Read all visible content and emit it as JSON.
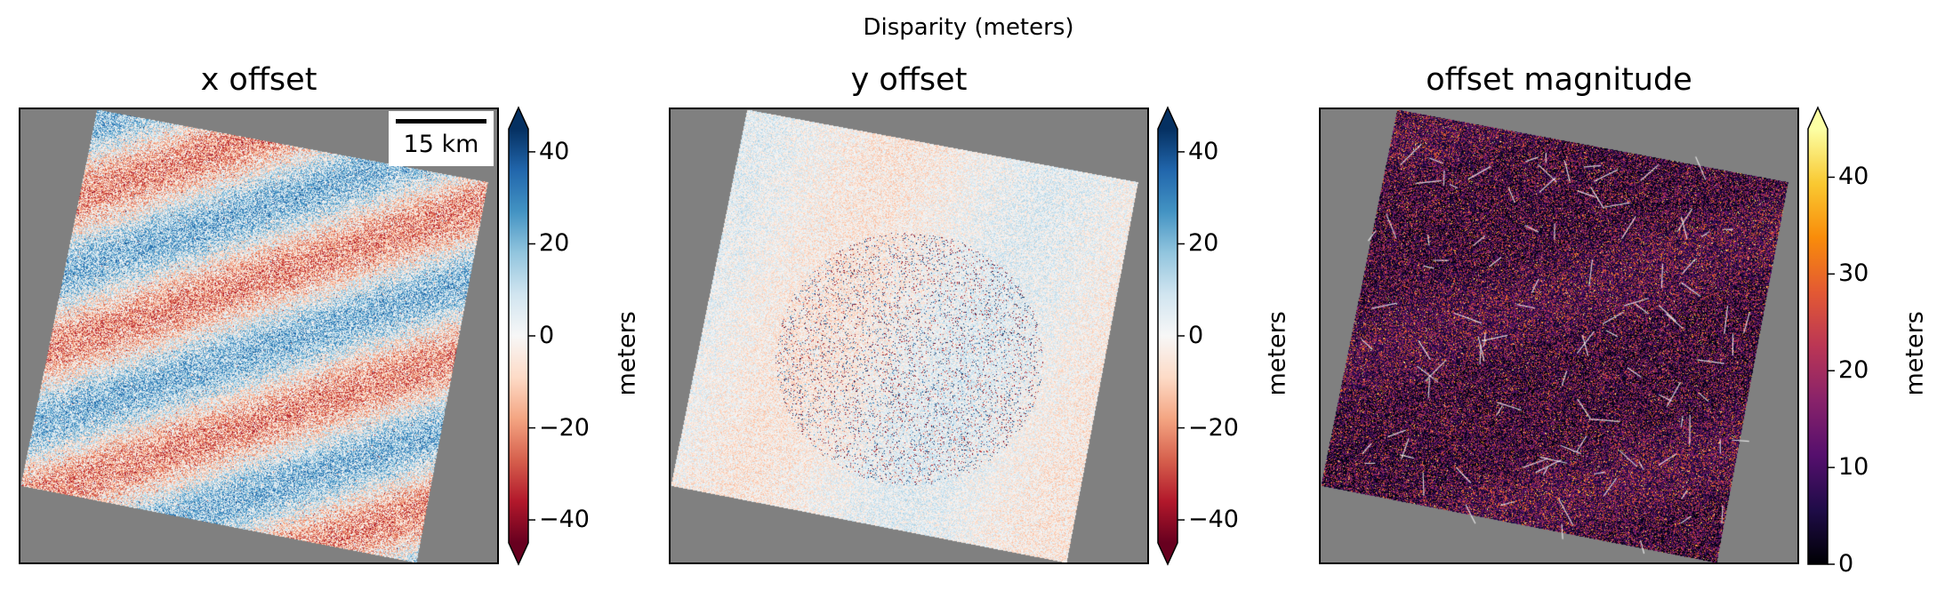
{
  "figure": {
    "suptitle": "Disparity (meters)"
  },
  "scalebar": {
    "label": "15 km"
  },
  "chart_data": [
    {
      "type": "heatmap",
      "title": "x offset",
      "colormap": "RdBu",
      "colorbar": {
        "label": "meters",
        "range": [
          -45,
          45
        ],
        "ticks": [
          40,
          20,
          0,
          -20,
          -40
        ],
        "tick_labels": [
          "40",
          "20",
          "0",
          "−20",
          "−40"
        ],
        "extend": "both"
      },
      "nodata_color": "#808080",
      "pattern": "diagonal bands of positive (blue) and negative (red) offsets"
    },
    {
      "type": "heatmap",
      "title": "y offset",
      "colormap": "RdBu",
      "colorbar": {
        "label": "meters",
        "range": [
          -45,
          45
        ],
        "ticks": [
          40,
          20,
          0,
          -20,
          -40
        ],
        "tick_labels": [
          "40",
          "20",
          "0",
          "−20",
          "−40"
        ],
        "extend": "both"
      },
      "nodata_color": "#808080",
      "pattern": "mostly near zero with localized strong positive and negative patches near center"
    },
    {
      "type": "heatmap",
      "title": "offset magnitude",
      "colormap": "inferno",
      "colorbar": {
        "label": "meters",
        "range": [
          0,
          45
        ],
        "ticks": [
          40,
          30,
          20,
          10,
          0
        ],
        "tick_labels": [
          "40",
          "30",
          "20",
          "10",
          "0"
        ],
        "extend": "max"
      },
      "nodata_color": "#808080",
      "pattern": "mostly dark (low magnitude) with bright streaks and patches"
    }
  ]
}
